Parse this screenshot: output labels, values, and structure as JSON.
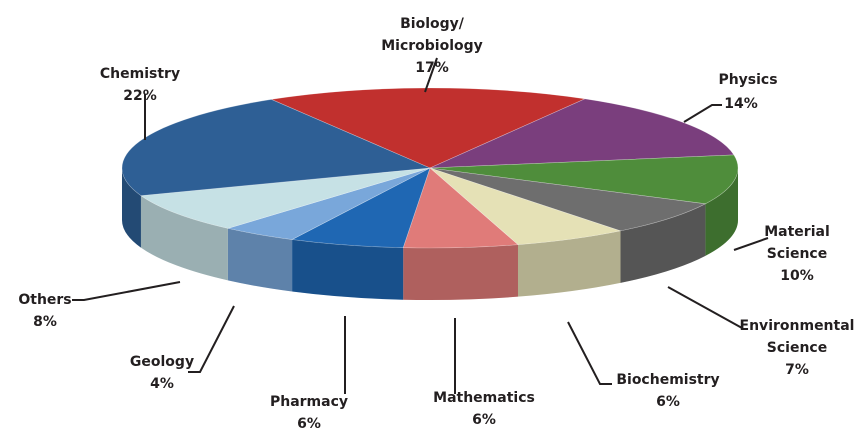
{
  "chart_data": {
    "type": "pie3d",
    "categories": [
      "Biology/Microbiology",
      "Physics",
      "Material Science",
      "Environmental Science",
      "Biochemistry",
      "Mathematics",
      "Pharmacy",
      "Geology",
      "Others",
      "Chemistry"
    ],
    "values": [
      17,
      14,
      10,
      7,
      6,
      6,
      6,
      4,
      8,
      22
    ],
    "value_labels": [
      "17%",
      "14%",
      "10%",
      "7%",
      "6%",
      "6%",
      "6%",
      "4%",
      "8%",
      "22%"
    ],
    "colors": [
      "#c1302e",
      "#7a3e7d",
      "#4f8d3b",
      "#6e6e6e",
      "#e5e1b6",
      "#e07b79",
      "#1f67b3",
      "#79a7da",
      "#c6e1e5",
      "#2e5f95"
    ]
  }
}
